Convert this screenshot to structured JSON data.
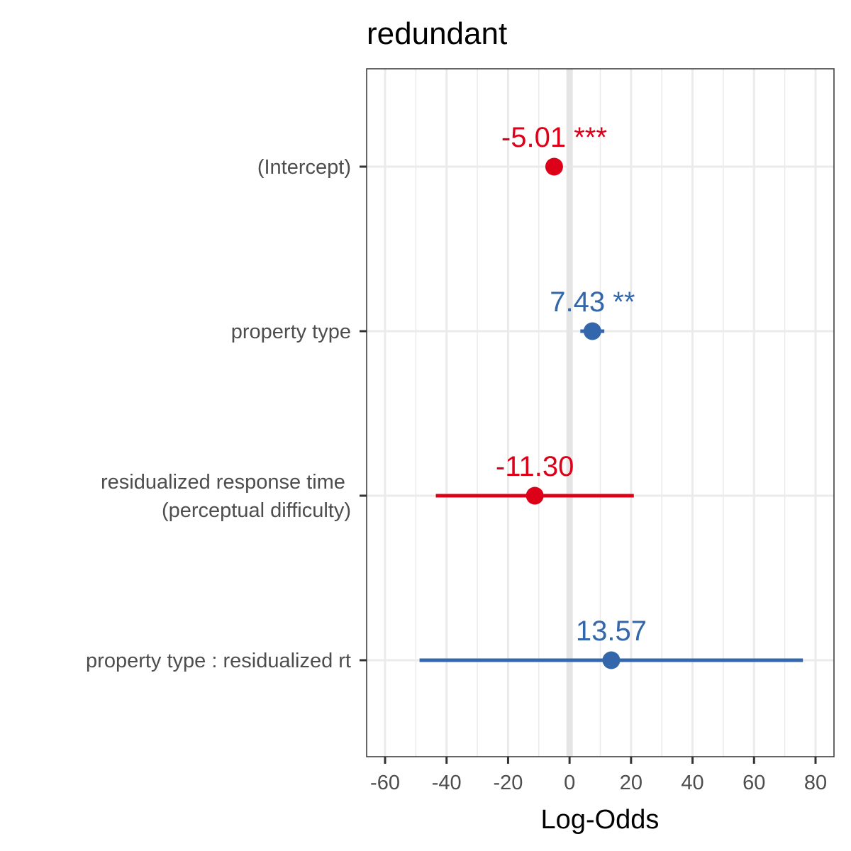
{
  "chart_data": {
    "type": "forest",
    "title": "redundant",
    "xlabel": "Log-Odds",
    "ylabel": "",
    "xlim": [
      -66,
      86
    ],
    "xticks": [
      -60,
      -40,
      -20,
      0,
      20,
      40,
      60,
      80
    ],
    "xtick_labels": [
      "-60",
      "-40",
      "-20",
      "0",
      "20",
      "40",
      "60",
      "80"
    ],
    "reference_line": 0,
    "grid": true,
    "colors": {
      "positive": "#3366aa",
      "negative": "#dd0019",
      "grid": "#ebebeb",
      "reference": "#e5e5e5",
      "panel_border": "#333333"
    },
    "terms": [
      {
        "label_lines": [
          "(Intercept)"
        ],
        "estimate": -5.01,
        "ci_low": -5.01,
        "ci_high": -5.01,
        "label": "-5.01 ***"
      },
      {
        "label_lines": [
          "property type"
        ],
        "estimate": 7.43,
        "ci_low": 3.5,
        "ci_high": 11.3,
        "label": "7.43 **"
      },
      {
        "label_lines": [
          "residualized response time ",
          "(perceptual difficulty)"
        ],
        "estimate": -11.3,
        "ci_low": -43.5,
        "ci_high": 20.9,
        "label": "-11.30"
      },
      {
        "label_lines": [
          "property type : residualized rt"
        ],
        "estimate": 13.57,
        "ci_low": -48.8,
        "ci_high": 75.9,
        "label": "13.57"
      }
    ]
  }
}
